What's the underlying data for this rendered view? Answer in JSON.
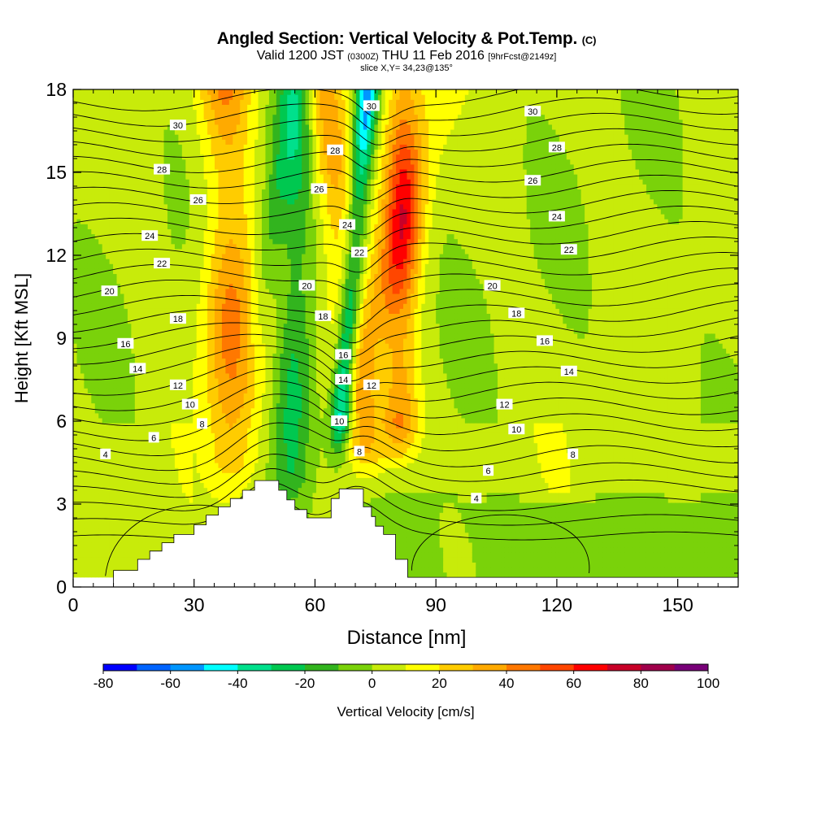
{
  "chart_data": {
    "type": "heatmap",
    "title": "Angled Section: Vertical Velocity & Pot.Temp.",
    "title_unit": "(C)",
    "subtitle_valid": "Valid 1200 JST",
    "subtitle_utc": "(0300Z)",
    "subtitle_date": "THU 11 Feb 2016",
    "subtitle_fcst": "[9hrFcst@2149z]",
    "slice_label": "slice X,Y= 34,23@135°",
    "xlabel": "Distance [nm]",
    "ylabel": "Height [Kft MSL]",
    "xlim": [
      0,
      165
    ],
    "ylim": [
      0,
      18
    ],
    "x_ticks": [
      0,
      30,
      60,
      90,
      120,
      150
    ],
    "y_ticks": [
      0,
      3,
      6,
      9,
      12,
      15,
      18
    ],
    "colorbar": {
      "label": "Vertical Velocity [cm/s]",
      "tick_labels": [
        "-80",
        "-60",
        "-40",
        "-20",
        "0",
        "20",
        "40",
        "60",
        "80",
        "100"
      ],
      "range": [
        -80,
        100
      ],
      "colors": [
        "#0000ff",
        "#0064ff",
        "#0096ff",
        "#00ffff",
        "#00e08c",
        "#00c850",
        "#32b41e",
        "#7ad20a",
        "#c8eb0a",
        "#ffff00",
        "#ffcc00",
        "#ffaa00",
        "#ff7800",
        "#ff4600",
        "#ff0000",
        "#c80028",
        "#a0004b",
        "#780078"
      ]
    },
    "terrain_profile": {
      "x": [
        0,
        10,
        10,
        16,
        16,
        19,
        19,
        22,
        22,
        25,
        25,
        30,
        30,
        33,
        33,
        36,
        36,
        39,
        39,
        42,
        42,
        45,
        45,
        47,
        47,
        51,
        51,
        53,
        53,
        55,
        55,
        58,
        58,
        61,
        61,
        64,
        64,
        66,
        66,
        72,
        72,
        74,
        74,
        75,
        75,
        77,
        77,
        80,
        80,
        83,
        83,
        90,
        90,
        165
      ],
      "z": [
        0,
        0,
        0.6,
        0.6,
        1.0,
        1.0,
        1.3,
        1.3,
        1.6,
        1.6,
        1.9,
        1.9,
        2.25,
        2.25,
        2.6,
        2.6,
        2.9,
        2.9,
        3.2,
        3.2,
        3.5,
        3.5,
        3.85,
        3.85,
        3.85,
        3.85,
        3.5,
        3.5,
        3.15,
        3.15,
        2.8,
        2.8,
        2.5,
        2.5,
        2.5,
        2.5,
        3.2,
        3.2,
        3.55,
        3.55,
        2.9,
        2.9,
        2.55,
        2.55,
        2.2,
        2.2,
        1.9,
        1.9,
        1.0,
        1.0,
        0.35,
        0.35,
        0.35,
        0.35
      ]
    },
    "updraft_bands": [
      {
        "x_bottom": 40,
        "x_top": 38,
        "z_bottom": 3.5,
        "width": 10,
        "peak": 45
      },
      {
        "x_bottom": 73,
        "x_top": 62,
        "z_bottom": 4.0,
        "width": 8,
        "peak": 38
      },
      {
        "x_bottom": 81,
        "x_top": 82,
        "z_bottom": 5.0,
        "width": 7,
        "peak": 50
      },
      {
        "x_bottom": 70,
        "x_top": 91,
        "z_bottom": 7.0,
        "width": 9,
        "peak": 22
      }
    ],
    "downdraft_bands": [
      {
        "x_bottom": 66,
        "x_top": 73,
        "z_bottom": 5.0,
        "width": 4,
        "peak": -65
      },
      {
        "x_bottom": 54,
        "x_top": 56,
        "z_bottom": 3.0,
        "width": 7,
        "peak": -30
      },
      {
        "x_bottom": 44,
        "x_top": 54,
        "z_bottom": 8.0,
        "width": 5,
        "peak": -15
      }
    ],
    "isentrope_levels": [
      3,
      4,
      5,
      6,
      7,
      8,
      9,
      10,
      11,
      12,
      13,
      14,
      15,
      16,
      17,
      18,
      19,
      20,
      21,
      22,
      23,
      24,
      25,
      26,
      27,
      28,
      29,
      30,
      31
    ],
    "isentrope_labels": [
      {
        "text": "4",
        "x": 8,
        "z": 4.8
      },
      {
        "text": "6",
        "x": 20,
        "z": 5.4
      },
      {
        "text": "8",
        "x": 32,
        "z": 5.9
      },
      {
        "text": "10",
        "x": 29,
        "z": 6.6
      },
      {
        "text": "12",
        "x": 26,
        "z": 7.3
      },
      {
        "text": "14",
        "x": 16,
        "z": 7.9
      },
      {
        "text": "16",
        "x": 13,
        "z": 8.8
      },
      {
        "text": "18",
        "x": 26,
        "z": 9.7
      },
      {
        "text": "20",
        "x": 9,
        "z": 10.7
      },
      {
        "text": "22",
        "x": 22,
        "z": 11.7
      },
      {
        "text": "24",
        "x": 19,
        "z": 12.7
      },
      {
        "text": "26",
        "x": 31,
        "z": 14.0
      },
      {
        "text": "28",
        "x": 22,
        "z": 15.1
      },
      {
        "text": "30",
        "x": 26,
        "z": 16.7
      },
      {
        "text": "20",
        "x": 58,
        "z": 10.9
      },
      {
        "text": "18",
        "x": 62,
        "z": 9.8
      },
      {
        "text": "16",
        "x": 67,
        "z": 8.4
      },
      {
        "text": "14",
        "x": 67,
        "z": 7.5
      },
      {
        "text": "12",
        "x": 74,
        "z": 7.3
      },
      {
        "text": "10",
        "x": 66,
        "z": 6.0
      },
      {
        "text": "8",
        "x": 71,
        "z": 4.9
      },
      {
        "text": "22",
        "x": 71,
        "z": 12.1
      },
      {
        "text": "24",
        "x": 68,
        "z": 13.1
      },
      {
        "text": "26",
        "x": 61,
        "z": 14.4
      },
      {
        "text": "28",
        "x": 65,
        "z": 15.8
      },
      {
        "text": "30",
        "x": 74,
        "z": 17.4
      },
      {
        "text": "4",
        "x": 100,
        "z": 3.2
      },
      {
        "text": "6",
        "x": 103,
        "z": 4.2
      },
      {
        "text": "8",
        "x": 124,
        "z": 4.8
      },
      {
        "text": "10",
        "x": 110,
        "z": 5.7
      },
      {
        "text": "12",
        "x": 107,
        "z": 6.6
      },
      {
        "text": "14",
        "x": 123,
        "z": 7.8
      },
      {
        "text": "16",
        "x": 117,
        "z": 8.9
      },
      {
        "text": "18",
        "x": 110,
        "z": 9.9
      },
      {
        "text": "20",
        "x": 104,
        "z": 10.9
      },
      {
        "text": "22",
        "x": 123,
        "z": 12.2
      },
      {
        "text": "24",
        "x": 120,
        "z": 13.4
      },
      {
        "text": "26",
        "x": 114,
        "z": 14.7
      },
      {
        "text": "28",
        "x": 120,
        "z": 15.9
      },
      {
        "text": "30",
        "x": 114,
        "z": 17.2
      }
    ],
    "grid": false,
    "legend": "bottom colorbar"
  }
}
